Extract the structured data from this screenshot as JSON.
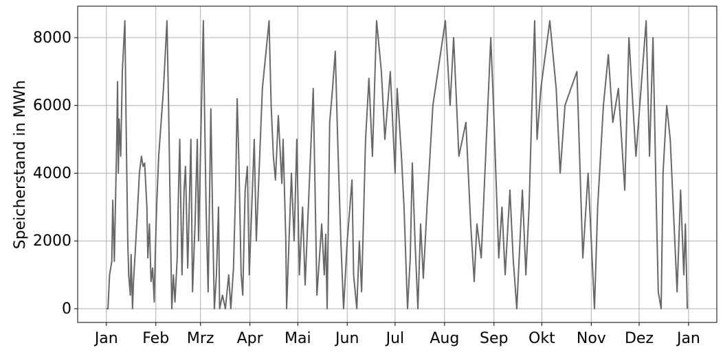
{
  "chart_data": {
    "type": "line",
    "ylabel": "Speicherstand in MWh",
    "color": "#676767",
    "grid": true,
    "x": [
      0,
      1,
      2,
      3.4,
      4,
      5,
      6.5,
      7,
      7.5,
      8,
      9,
      10,
      11.6,
      12.5,
      13.4,
      14,
      15,
      15.5,
      16.4,
      17,
      18,
      19.4,
      20.7,
      22,
      23,
      24,
      25.4,
      26,
      27,
      28,
      29,
      30,
      30.6,
      31.5,
      32.8,
      34,
      35.8,
      38,
      39,
      40,
      41,
      42,
      43,
      44.4,
      45,
      46,
      47.4,
      48.7,
      49.6,
      51,
      51.7,
      53,
      54,
      55.6,
      57,
      57.8,
      60.8,
      61.5,
      62.5,
      63.8,
      65.5,
      66.5,
      67.7,
      69,
      70.3,
      71,
      72.8,
      74.6,
      76.7,
      78,
      79.7,
      81,
      82,
      83,
      84.5,
      85.5,
      87,
      88.4,
      89.6,
      92.7,
      94,
      97.8,
      102,
      103.3,
      104.7,
      106,
      107.8,
      110,
      110.8,
      112.5,
      113,
      116,
      117.7,
      119.4,
      121,
      123,
      124.6,
      129.7,
      132,
      135,
      136.6,
      137.5,
      138.4,
      140,
      141.8,
      143.5,
      145,
      147,
      148.7,
      151,
      154,
      155,
      157,
      158.6,
      160,
      162.5,
      164.6,
      166.8,
      169.4,
      172.4,
      174.6,
      178,
      181,
      182.3,
      185,
      186.6,
      188.8,
      190.5,
      191.8,
      193.5,
      195.3,
      197,
      198.7,
      201,
      204.7,
      212.5,
      215.5,
      217.7,
      221,
      225.4,
      228.4,
      230.6,
      232.3,
      235,
      241,
      242.7,
      246,
      248,
      250,
      253,
      255,
      257.3,
      260.8,
      263,
      265,
      266.8,
      268.5,
      270,
      272.4,
      278,
      282,
      284.5,
      287.5,
      295,
      298.7,
      302,
      306,
      308,
      311.6,
      314.7,
      317.5,
      321,
      325,
      327.6,
      332,
      336,
      338.4,
      340.5,
      342.7,
      344.8,
      346,
      347.8,
      349,
      351.3,
      353.5,
      357.8,
      360,
      362,
      363,
      364.2
    ],
    "values": [
      0,
      0,
      1000,
      1400,
      3200,
      1400,
      5000,
      6700,
      4000,
      5600,
      4500,
      7000,
      8500,
      5000,
      2000,
      1000,
      400,
      1600,
      0,
      800,
      1600,
      2800,
      4000,
      4500,
      4200,
      4300,
      3000,
      1500,
      2500,
      800,
      1200,
      200,
      1500,
      3000,
      4500,
      5300,
      6500,
      8500,
      6000,
      3000,
      0,
      1000,
      200,
      1500,
      3000,
      5000,
      1000,
      3500,
      4200,
      1200,
      2500,
      5000,
      500,
      2500,
      5000,
      2000,
      8500,
      6000,
      3000,
      500,
      5900,
      3000,
      0,
      1000,
      3000,
      0,
      400,
      0,
      1000,
      0,
      1200,
      3500,
      6200,
      4500,
      1000,
      400,
      3500,
      4200,
      1000,
      5000,
      2000,
      6500,
      8500,
      6000,
      4500,
      3800,
      5700,
      3700,
      5000,
      2000,
      0,
      4000,
      2000,
      5000,
      1000,
      3000,
      700,
      6500,
      400,
      2500,
      1000,
      2200,
      0,
      5500,
      6500,
      7600,
      5000,
      2000,
      0,
      2000,
      3800,
      1000,
      0,
      2000,
      500,
      5000,
      6800,
      4500,
      8500,
      7000,
      5000,
      7000,
      4000,
      6500,
      4500,
      3000,
      0,
      1500,
      4300,
      2000,
      0,
      2500,
      900,
      3000,
      6000,
      8500,
      6000,
      8000,
      4500,
      5500,
      2500,
      800,
      2500,
      1500,
      8000,
      6000,
      1500,
      3000,
      1000,
      3500,
      1500,
      0,
      3500,
      1000,
      3000,
      6000,
      8500,
      5000,
      6500,
      8500,
      6500,
      4000,
      6000,
      7000,
      1500,
      4000,
      0,
      3000,
      6000,
      7500,
      5500,
      6500,
      3500,
      8000,
      4500,
      7000,
      8500,
      4500,
      8000,
      3000,
      500,
      0,
      4000,
      6000,
      5000,
      500,
      3500,
      1000,
      2500,
      0
    ],
    "xlim": [
      -18,
      382.7
    ],
    "xticks": [
      {
        "value": 0,
        "label": "Jan"
      },
      {
        "value": 31,
        "label": "Feb"
      },
      {
        "value": 59,
        "label": "Mrz"
      },
      {
        "value": 90,
        "label": "Apr"
      },
      {
        "value": 120,
        "label": "Mai"
      },
      {
        "value": 151,
        "label": "Jun"
      },
      {
        "value": 181,
        "label": "Jul"
      },
      {
        "value": 212,
        "label": "Aug"
      },
      {
        "value": 243,
        "label": "Sep"
      },
      {
        "value": 273,
        "label": "Okt"
      },
      {
        "value": 304,
        "label": "Nov"
      },
      {
        "value": 334,
        "label": "Dez"
      },
      {
        "value": 365,
        "label": "Jan"
      }
    ],
    "ylim": [
      -405,
      8930
    ],
    "yticks": [
      0,
      2000,
      4000,
      6000,
      8000
    ]
  }
}
